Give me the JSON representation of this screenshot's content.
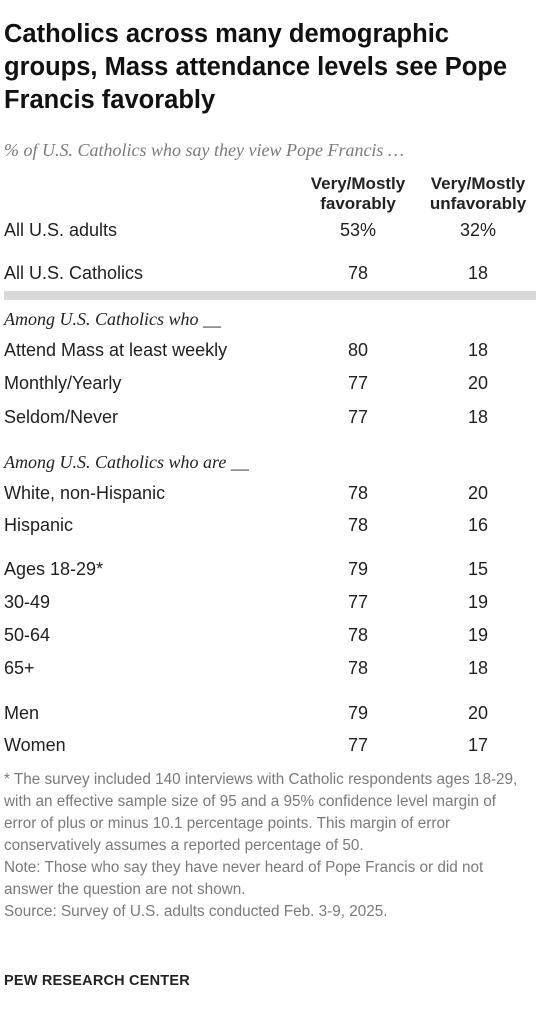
{
  "title": "Catholics across many demographic groups, Mass attendance levels see Pope Francis favorably",
  "subtitle": "% of U.S. Catholics who say they view Pope Francis …",
  "columns": [
    "Very/Mostly favorably",
    "Very/Mostly unfavorably"
  ],
  "chart_data": {
    "type": "table",
    "title": "Catholics across many demographic groups, Mass attendance levels see Pope Francis favorably",
    "subtitle": "% of U.S. Catholics who say they view Pope Francis …",
    "columns": [
      "Very/Mostly favorably",
      "Very/Mostly unfavorably"
    ],
    "rows": [
      {
        "label": "All U.S. adults",
        "values": [
          "53%",
          "32%"
        ]
      },
      {
        "label": "All U.S. Catholics",
        "values": [
          "78",
          "18"
        ]
      },
      {
        "section": "Among U.S. Catholics who __"
      },
      {
        "label": "Attend Mass at least weekly",
        "values": [
          "80",
          "18"
        ]
      },
      {
        "label": "Monthly/Yearly",
        "values": [
          "77",
          "20"
        ]
      },
      {
        "label": "Seldom/Never",
        "values": [
          "77",
          "18"
        ]
      },
      {
        "section": "Among U.S. Catholics who are __"
      },
      {
        "label": "White, non-Hispanic",
        "values": [
          "78",
          "20"
        ]
      },
      {
        "label": "Hispanic",
        "values": [
          "78",
          "16"
        ]
      },
      {
        "label": "Ages 18-29*",
        "values": [
          "79",
          "15"
        ]
      },
      {
        "label": "30-49",
        "values": [
          "77",
          "19"
        ]
      },
      {
        "label": "50-64",
        "values": [
          "78",
          "19"
        ]
      },
      {
        "label": "65+",
        "values": [
          "78",
          "18"
        ]
      },
      {
        "label": "Men",
        "values": [
          "79",
          "20"
        ]
      },
      {
        "label": "Women",
        "values": [
          "77",
          "17"
        ]
      }
    ]
  },
  "notes": {
    "footnote": "* The survey included 140 interviews with Catholic respondents ages 18-29, with an effective sample size of 95 and a 95% confidence level margin of error of plus or minus 10.1 percentage points. This margin of error conservatively assumes a reported percentage of 50.",
    "note": "Note: Those who say they have never heard of Pope Francis or did not answer the question are not shown.",
    "source": "Source: Survey of U.S. adults conducted Feb. 3-9, 2025."
  },
  "footer": "PEW RESEARCH CENTER"
}
